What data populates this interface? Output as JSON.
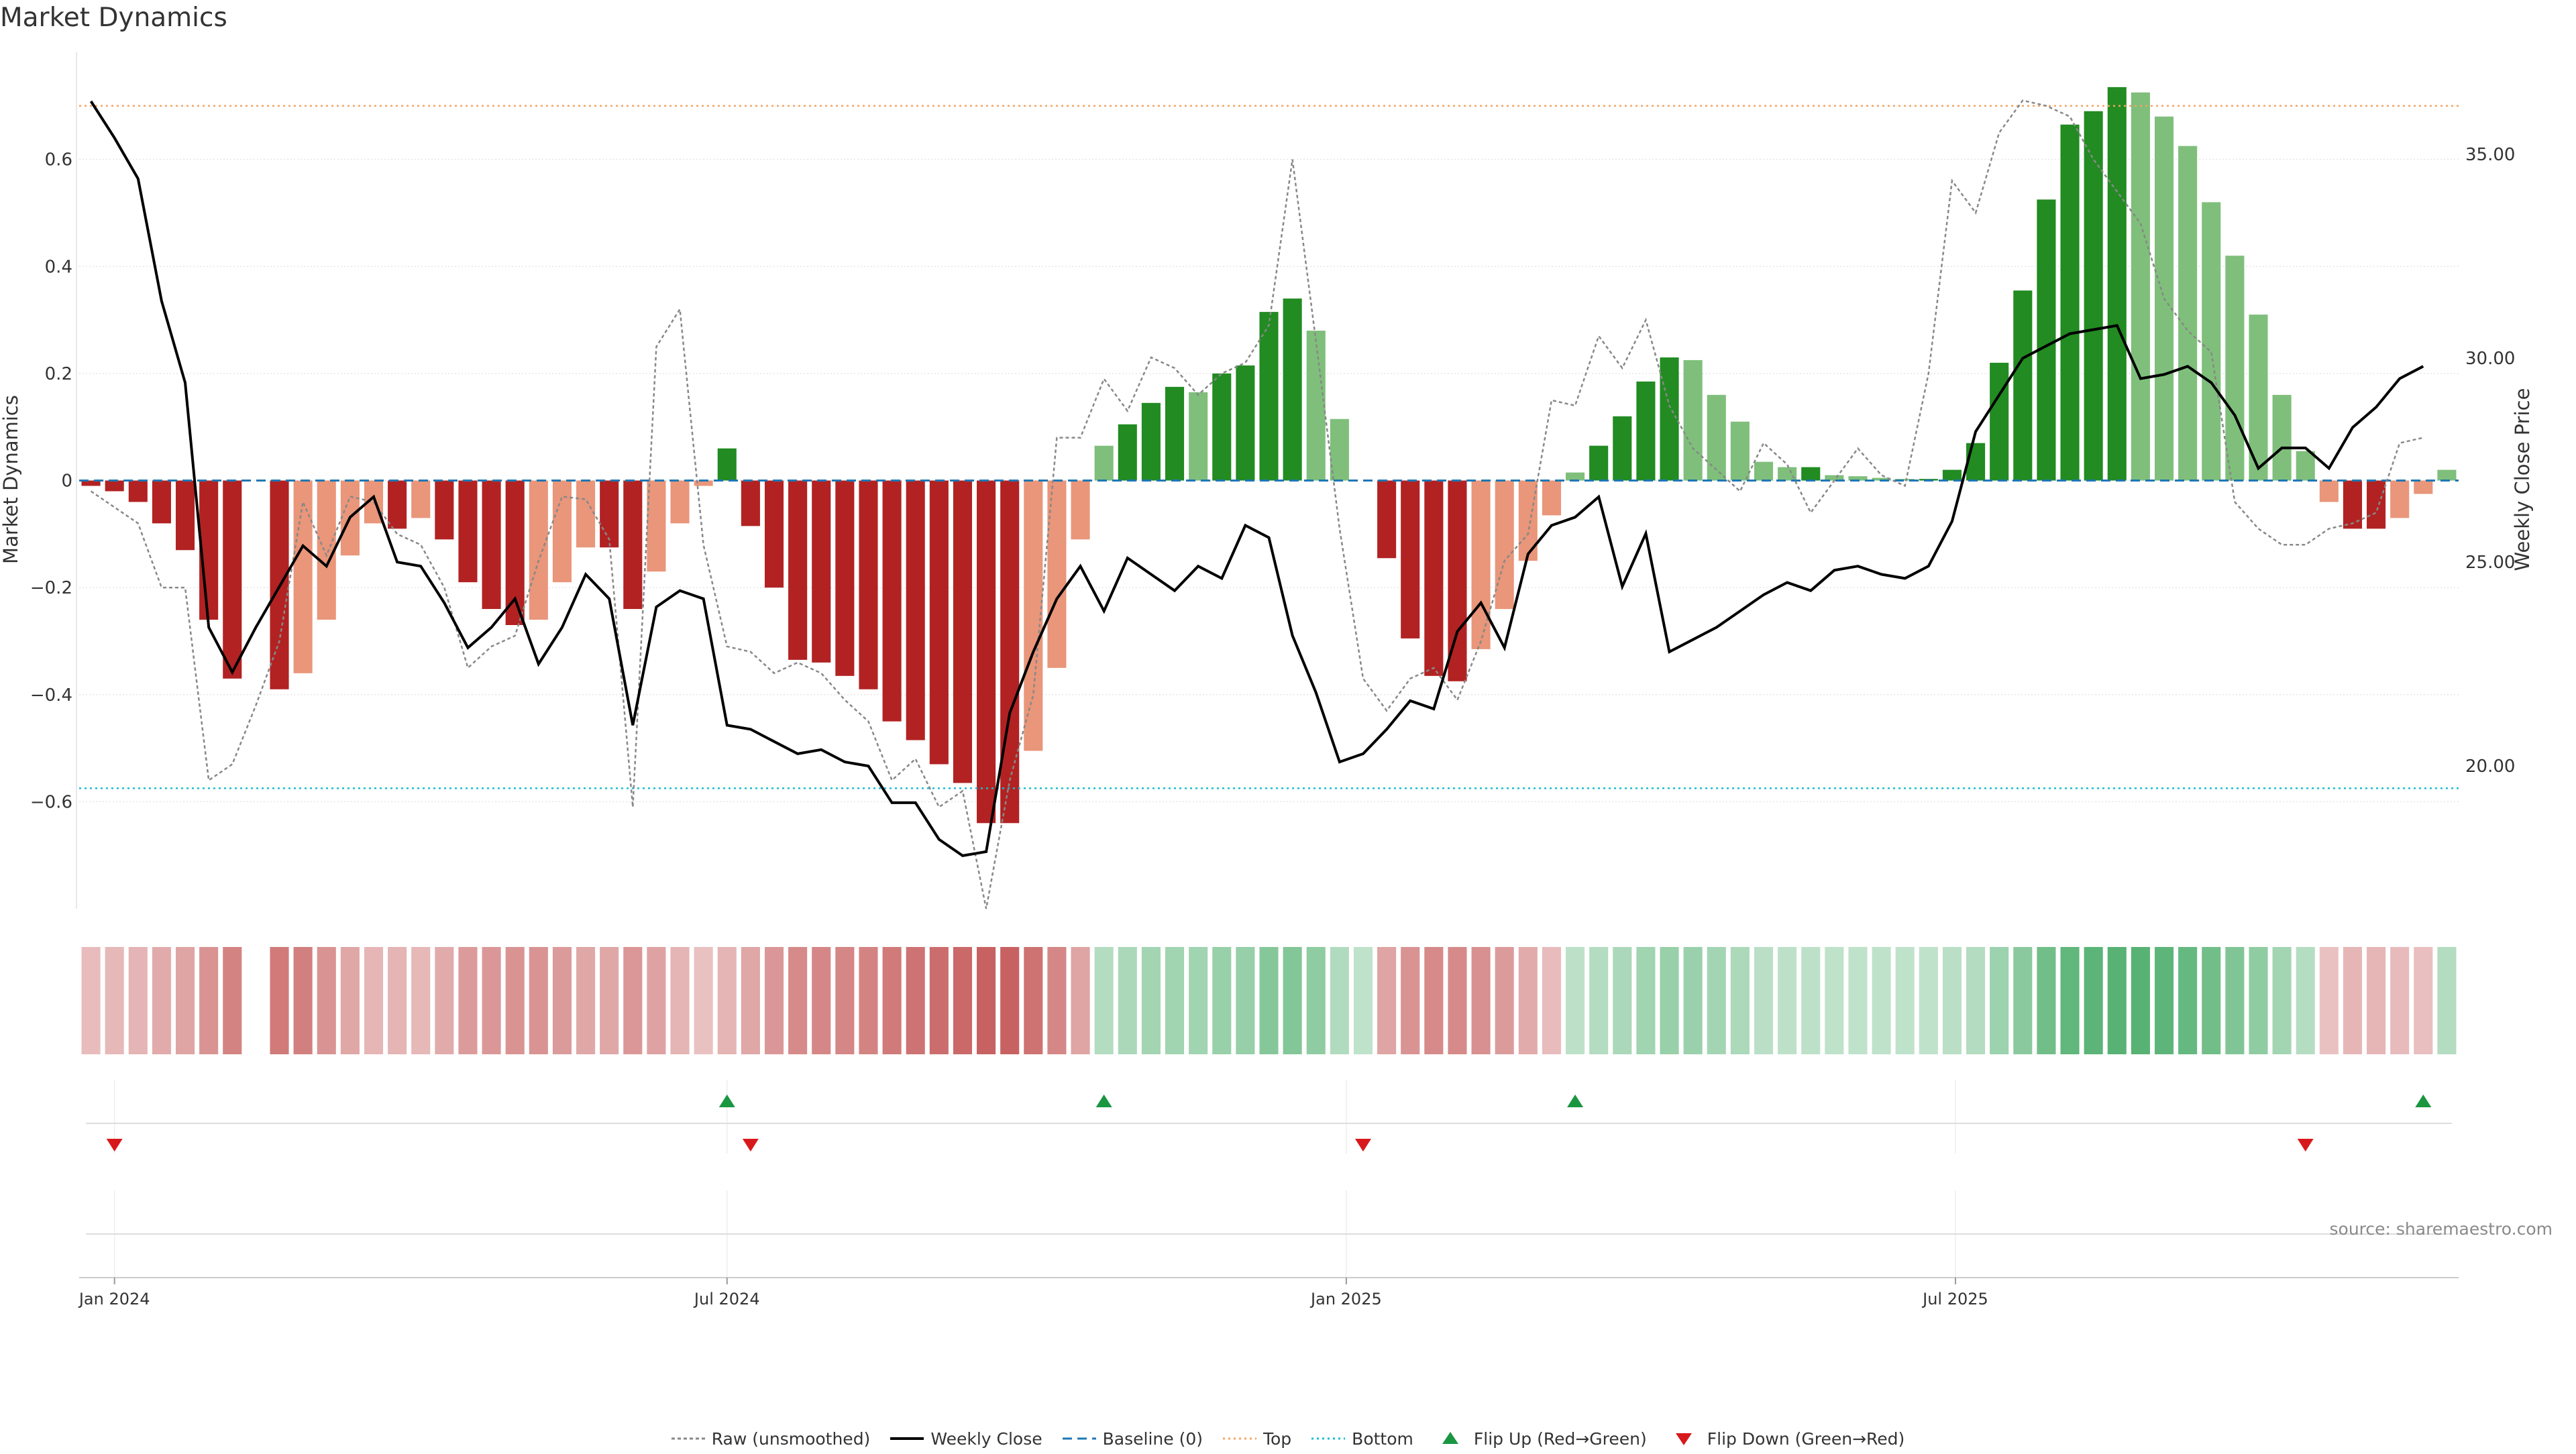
{
  "chart_data": {
    "type": "bar",
    "title": "Market Dynamics",
    "ylabel": "Market Dynamics",
    "y2label": "Weekly Close Price",
    "ylim": [
      -0.8,
      0.8
    ],
    "y2lim": [
      16.5,
      37.5
    ],
    "yticks": [
      -0.6,
      -0.4,
      -0.2,
      0,
      0.2,
      0.4,
      0.6
    ],
    "ytick_labels": [
      "−0.6",
      "−0.4",
      "−0.2",
      "0",
      "0.2",
      "0.4",
      "0.6"
    ],
    "y2ticks": [
      20,
      25,
      30,
      35
    ],
    "y2tick_labels": [
      "20.00",
      "25.00",
      "30.00",
      "35.00"
    ],
    "x_start": "2023-12-25",
    "x_ticks": [
      {
        "date": "2024-01-01",
        "label": "Jan 2024"
      },
      {
        "date": "2024-07-01",
        "label": "Jul 2024"
      },
      {
        "date": "2025-01-01",
        "label": "Jan 2025"
      },
      {
        "date": "2025-07-01",
        "label": "Jul 2025"
      }
    ],
    "top_level": 0.7,
    "bottom_level": -0.575,
    "baseline": 0,
    "market_dynamics": [
      -0.01,
      -0.02,
      -0.04,
      -0.08,
      -0.13,
      -0.26,
      -0.37,
      0,
      -0.39,
      -0.36,
      -0.26,
      -0.14,
      -0.08,
      -0.09,
      -0.07,
      -0.11,
      -0.19,
      -0.24,
      -0.27,
      -0.26,
      -0.19,
      -0.125,
      -0.125,
      -0.24,
      -0.17,
      -0.08,
      -0.01,
      0.06,
      -0.085,
      -0.2,
      -0.335,
      -0.34,
      -0.365,
      -0.39,
      -0.45,
      -0.485,
      -0.53,
      -0.565,
      -0.64,
      -0.64,
      -0.505,
      -0.35,
      -0.11,
      0.065,
      0.105,
      0.145,
      0.175,
      0.165,
      0.2,
      0.215,
      0.315,
      0.34,
      0.28,
      0.115,
      0,
      -0.145,
      -0.295,
      -0.365,
      -0.375,
      -0.315,
      -0.24,
      -0.15,
      -0.065,
      0.015,
      0.065,
      0.12,
      0.185,
      0.23,
      0.225,
      0.16,
      0.11,
      0.035,
      0.025,
      0.025,
      0.01,
      0.008,
      0.005,
      0.003,
      0.003,
      0.02,
      0.07,
      0.22,
      0.355,
      0.525,
      0.665,
      0.69,
      0.735,
      0.725,
      0.68,
      0.625,
      0.52,
      0.42,
      0.31,
      0.16,
      0.055,
      -0.04,
      -0.09,
      -0.09,
      -0.07,
      -0.025,
      0.02
    ],
    "raw_unsmoothed": [
      -0.02,
      -0.05,
      -0.08,
      -0.2,
      -0.2,
      -0.56,
      -0.53,
      -0.42,
      -0.3,
      -0.04,
      -0.14,
      -0.03,
      -0.04,
      -0.1,
      -0.12,
      -0.2,
      -0.35,
      -0.31,
      -0.29,
      -0.15,
      -0.03,
      -0.035,
      -0.11,
      -0.61,
      0.25,
      0.32,
      -0.12,
      -0.31,
      -0.32,
      -0.36,
      -0.34,
      -0.36,
      -0.41,
      -0.45,
      -0.56,
      -0.52,
      -0.61,
      -0.58,
      -0.8,
      -0.56,
      -0.4,
      0.08,
      0.08,
      0.19,
      0.13,
      0.23,
      0.21,
      0.16,
      0.2,
      0.22,
      0.29,
      0.6,
      0.26,
      -0.09,
      -0.37,
      -0.43,
      -0.37,
      -0.35,
      -0.41,
      -0.3,
      -0.15,
      -0.1,
      0.15,
      0.14,
      0.27,
      0.21,
      0.3,
      0.14,
      0.06,
      0.02,
      -0.02,
      0.07,
      0.03,
      -0.06,
      0.0,
      0.06,
      0.01,
      -0.01,
      0.2,
      0.56,
      0.5,
      0.65,
      0.71,
      0.7,
      0.68,
      0.6,
      0.54,
      0.48,
      0.34,
      0.28,
      0.24,
      -0.04,
      -0.09,
      -0.12,
      -0.12,
      -0.09,
      -0.08,
      -0.06,
      0.07,
      0.08
    ],
    "weekly_close": [
      36.3,
      35.4,
      34.4,
      31.4,
      29.4,
      23.4,
      22.3,
      23.4,
      24.4,
      25.4,
      24.9,
      26.1,
      26.6,
      25.0,
      24.9,
      24.0,
      22.9,
      23.4,
      24.1,
      22.5,
      23.4,
      24.7,
      24.1,
      21.0,
      23.9,
      24.3,
      24.1,
      21.0,
      20.9,
      20.6,
      20.3,
      20.4,
      20.1,
      20.0,
      19.1,
      19.1,
      18.2,
      17.8,
      17.9,
      21.3,
      22.8,
      24.1,
      24.9,
      23.8,
      25.1,
      24.7,
      24.3,
      24.9,
      24.6,
      25.9,
      25.6,
      23.2,
      21.8,
      20.1,
      20.3,
      20.9,
      21.6,
      21.4,
      23.3,
      24.0,
      22.9,
      25.2,
      25.9,
      26.1,
      26.6,
      24.4,
      25.7,
      22.8,
      23.1,
      23.4,
      23.8,
      24.2,
      24.5,
      24.3,
      24.8,
      24.9,
      24.7,
      24.6,
      24.9,
      26.0,
      28.2,
      29.1,
      30.0,
      30.3,
      30.6,
      30.7,
      30.8,
      29.5,
      29.6,
      29.8,
      29.4,
      28.6,
      27.3,
      27.8,
      27.8,
      27.3,
      28.3,
      28.8,
      29.5,
      29.8
    ],
    "strip_intensity": [
      -0.15,
      -0.18,
      -0.22,
      -0.28,
      -0.33,
      -0.45,
      -0.55,
      0,
      -0.62,
      -0.58,
      -0.45,
      -0.3,
      -0.2,
      -0.22,
      -0.19,
      -0.27,
      -0.38,
      -0.42,
      -0.45,
      -0.44,
      -0.38,
      -0.3,
      -0.3,
      -0.42,
      -0.34,
      -0.22,
      -0.12,
      -0.22,
      -0.3,
      -0.42,
      -0.5,
      -0.52,
      -0.54,
      -0.56,
      -0.62,
      -0.66,
      -0.7,
      -0.74,
      -0.78,
      -0.78,
      -0.68,
      -0.52,
      -0.32,
      0.2,
      0.26,
      0.3,
      0.33,
      0.32,
      0.38,
      0.4,
      0.5,
      0.52,
      0.44,
      0.22,
      0.12,
      -0.32,
      -0.44,
      -0.5,
      -0.51,
      -0.46,
      -0.38,
      -0.28,
      -0.16,
      0.14,
      0.2,
      0.26,
      0.33,
      0.38,
      0.37,
      0.3,
      0.24,
      0.15,
      0.14,
      0.14,
      0.13,
      0.13,
      0.12,
      0.12,
      0.12,
      0.15,
      0.2,
      0.35,
      0.48,
      0.64,
      0.76,
      0.78,
      0.82,
      0.81,
      0.77,
      0.72,
      0.64,
      0.54,
      0.44,
      0.3,
      0.18,
      -0.12,
      -0.2,
      -0.2,
      -0.17,
      -0.14,
      0.2
    ],
    "flip_up_idx": [
      27,
      43,
      63,
      99
    ],
    "flip_down_idx": [
      1,
      28,
      54,
      94
    ],
    "legend": [
      {
        "key": "raw",
        "label": "Raw (unsmoothed)"
      },
      {
        "key": "close",
        "label": "Weekly Close"
      },
      {
        "key": "baseline",
        "label": "Baseline (0)"
      },
      {
        "key": "top",
        "label": "Top"
      },
      {
        "key": "bottom",
        "label": "Bottom"
      },
      {
        "key": "flipup",
        "label": "Flip Up (Red→Green)"
      },
      {
        "key": "flipdown",
        "label": "Flip Down (Green→Red)"
      }
    ],
    "colors": {
      "bar_pos_strong": "#228b22",
      "bar_pos_weak": "#7fbf7b",
      "bar_neg_strong": "#b22222",
      "bar_neg_weak": "#e9967a",
      "close": "#000000",
      "raw": "#888888",
      "baseline": "#1f77b4",
      "top": "#f4a460",
      "bottom": "#17becf",
      "flip_up": "#1a9641",
      "flip_down": "#d7191c"
    }
  },
  "source": "source: sharemaestro.com"
}
